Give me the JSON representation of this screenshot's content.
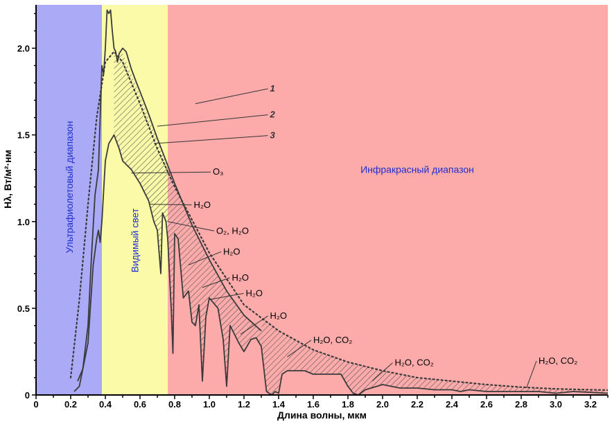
{
  "chart_data": {
    "type": "line",
    "xlabel": "Длина волны, мкм",
    "ylabel": "Hλ, Вт/м²·нм",
    "xlim": [
      0,
      3.3
    ],
    "ylim": [
      0,
      2.25
    ],
    "x_ticks": [
      "0",
      "0.2",
      "0.4",
      "0.6",
      "0.8",
      "1.0",
      "1.2",
      "1.4",
      "1.6",
      "1.8",
      "2.0",
      "2.2",
      "2.4",
      "2.6",
      "2.8",
      "3.0",
      "3.2"
    ],
    "y_ticks": [
      "0",
      "0.5",
      "1.0",
      "1.5",
      "2.0"
    ],
    "regions": [
      {
        "label": "Ультрафиолетовый диапазон",
        "from": 0,
        "to": 0.38,
        "color": "#aaaaf6"
      },
      {
        "label": "Видимый свет",
        "from": 0.38,
        "to": 0.76,
        "color": "#fafaa8"
      },
      {
        "label": "Инфракрасный диапазон",
        "from": 0.76,
        "to": 3.3,
        "color": "#fcaaaa"
      }
    ],
    "series": [
      {
        "name": "1",
        "style": "solid",
        "x": [
          0.24,
          0.27,
          0.3,
          0.32,
          0.34,
          0.36,
          0.37,
          0.38,
          0.39,
          0.4,
          0.41,
          0.42,
          0.43,
          0.44,
          0.45,
          0.46,
          0.47,
          0.48,
          0.5,
          0.52,
          0.55,
          0.58,
          0.6,
          0.65,
          0.7,
          0.75,
          0.8,
          0.85,
          0.9,
          0.95,
          1.0,
          1.1,
          1.2,
          1.3
        ],
        "y": [
          0.08,
          0.15,
          0.4,
          0.8,
          1.15,
          1.3,
          1.6,
          1.9,
          1.85,
          2.0,
          2.22,
          2.2,
          2.22,
          2.1,
          2.0,
          1.98,
          1.92,
          1.97,
          2.0,
          1.98,
          1.88,
          1.8,
          1.75,
          1.62,
          1.48,
          1.35,
          1.22,
          1.1,
          0.98,
          0.88,
          0.78,
          0.6,
          0.46,
          0.37
        ]
      },
      {
        "name": "2",
        "style": "dotted",
        "x": [
          0.2,
          0.25,
          0.3,
          0.35,
          0.4,
          0.45,
          0.5,
          0.6,
          0.7,
          0.8,
          1.0,
          1.2,
          1.4,
          1.6,
          1.8,
          2.0,
          2.2,
          2.4,
          2.6,
          2.8,
          3.0,
          3.2,
          3.3
        ],
        "y": [
          0.1,
          0.55,
          1.1,
          1.6,
          1.92,
          1.98,
          1.92,
          1.68,
          1.42,
          1.2,
          0.82,
          0.52,
          0.37,
          0.26,
          0.19,
          0.14,
          0.1,
          0.08,
          0.06,
          0.045,
          0.035,
          0.03,
          0.028
        ]
      },
      {
        "name": "3",
        "style": "solid",
        "x": [
          0.22,
          0.25,
          0.3,
          0.33,
          0.35,
          0.36,
          0.37,
          0.38,
          0.4,
          0.42,
          0.45,
          0.48,
          0.5,
          0.55,
          0.6,
          0.65,
          0.68,
          0.7,
          0.72,
          0.73,
          0.75,
          0.76,
          0.78,
          0.79,
          0.8,
          0.82,
          0.85,
          0.88,
          0.9,
          0.92,
          0.94,
          0.96,
          0.98,
          1.0,
          1.05,
          1.08,
          1.1,
          1.12,
          1.14,
          1.17,
          1.2,
          1.24,
          1.27,
          1.3,
          1.33,
          1.36,
          1.38,
          1.4,
          1.42,
          1.45,
          1.48,
          1.5,
          1.55,
          1.6,
          1.7,
          1.76,
          1.8,
          1.83,
          1.86,
          1.9,
          2.0,
          2.05,
          2.1,
          2.2,
          2.3,
          2.4,
          2.45,
          2.5,
          2.6,
          2.7,
          2.8,
          2.9,
          3.0,
          3.1,
          3.2,
          3.3
        ],
        "y": [
          0.02,
          0.05,
          0.3,
          0.75,
          0.9,
          0.95,
          0.88,
          1.0,
          1.35,
          1.45,
          1.5,
          1.42,
          1.35,
          1.3,
          1.22,
          1.12,
          1.0,
          0.95,
          0.7,
          1.05,
          1.0,
          0.9,
          0.5,
          0.24,
          0.93,
          0.9,
          0.56,
          0.6,
          0.42,
          0.4,
          0.52,
          0.08,
          0.45,
          0.56,
          0.5,
          0.32,
          0.05,
          0.4,
          0.36,
          0.3,
          0.25,
          0.32,
          0.33,
          0.28,
          0.02,
          0.0,
          0.02,
          0.01,
          0.12,
          0.14,
          0.14,
          0.14,
          0.14,
          0.12,
          0.12,
          0.12,
          0.05,
          0.01,
          0.0,
          0.03,
          0.06,
          0.05,
          0.04,
          0.04,
          0.03,
          0.03,
          0.02,
          0.03,
          0.02,
          0.02,
          0.02,
          0.02,
          0.01,
          0.02,
          0.015,
          0.01
        ]
      }
    ],
    "annotations": [
      {
        "text": "1",
        "kind": "curve",
        "x": 1.35,
        "y": 1.75,
        "to_x": 0.92,
        "to_y": 1.68
      },
      {
        "text": "2",
        "kind": "curve",
        "x": 1.35,
        "y": 1.6,
        "to_x": 0.7,
        "to_y": 1.55
      },
      {
        "text": "3",
        "kind": "curve",
        "x": 1.35,
        "y": 1.48,
        "to_x": 0.68,
        "to_y": 1.45
      },
      {
        "text": "O₃",
        "kind": "absorber",
        "x": 1.02,
        "y": 1.27,
        "to_x": 0.55,
        "to_y": 1.28
      },
      {
        "text": "H₂O",
        "kind": "absorber",
        "x": 0.91,
        "y": 1.08,
        "to_x": 0.66,
        "to_y": 1.1
      },
      {
        "text": "O₂, H₂O",
        "kind": "absorber",
        "x": 1.04,
        "y": 0.93,
        "to_x": 0.76,
        "to_y": 1.0
      },
      {
        "text": "H₂O",
        "kind": "absorber",
        "x": 1.08,
        "y": 0.81,
        "to_x": 0.88,
        "to_y": 0.75
      },
      {
        "text": "H₂O",
        "kind": "absorber",
        "x": 1.13,
        "y": 0.66,
        "to_x": 0.96,
        "to_y": 0.62
      },
      {
        "text": "H₂O",
        "kind": "absorber",
        "x": 1.21,
        "y": 0.57,
        "to_x": 1.0,
        "to_y": 0.55
      },
      {
        "text": "H₂O",
        "kind": "absorber",
        "x": 1.35,
        "y": 0.44,
        "to_x": 1.18,
        "to_y": 0.35
      },
      {
        "text": "H₂O, CO₂",
        "kind": "absorber",
        "x": 1.6,
        "y": 0.3,
        "to_x": 1.45,
        "to_y": 0.22
      },
      {
        "text": "H₂O, CO₂",
        "kind": "absorber",
        "x": 2.07,
        "y": 0.17,
        "to_x": 1.94,
        "to_y": 0.08
      },
      {
        "text": "H₂O, CO₂",
        "kind": "absorber",
        "x": 2.9,
        "y": 0.18,
        "to_x": 2.83,
        "to_y": 0.04
      }
    ],
    "grid": false,
    "legend": "none"
  }
}
